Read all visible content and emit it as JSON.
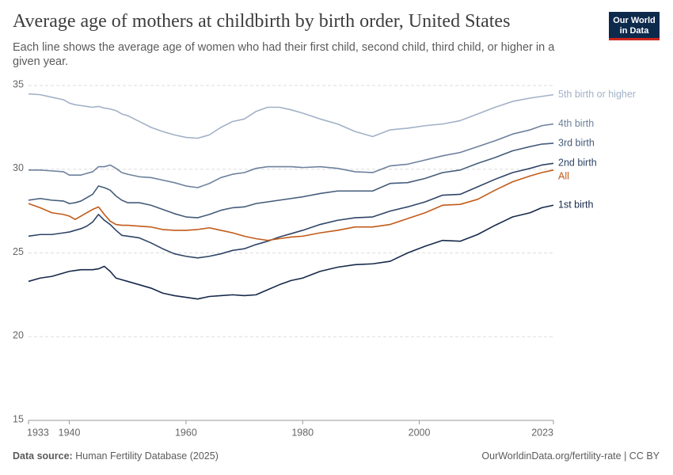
{
  "chart_data": {
    "type": "line",
    "title": "Average age of mothers at childbirth by birth order, United States",
    "subtitle": "Each line shows the average age of women who had their first child, second child, third child, or higher in a given year.",
    "logo": "Our World in Data",
    "source_label": "Data source:",
    "source": "Human Fertility Database (2025)",
    "credit": "OurWorldinData.org/fertility-rate | CC BY",
    "grid": true,
    "xlim": [
      1933,
      2023
    ],
    "xticks": [
      1933,
      1940,
      1960,
      1980,
      2000,
      2023
    ],
    "ylim": [
      15,
      35
    ],
    "yticks": [
      15,
      20,
      25,
      30,
      35
    ],
    "x": [
      1933,
      1935,
      1937,
      1939,
      1940,
      1941,
      1942,
      1943,
      1944,
      1945,
      1946,
      1947,
      1948,
      1949,
      1950,
      1952,
      1954,
      1956,
      1958,
      1960,
      1962,
      1964,
      1966,
      1968,
      1970,
      1972,
      1974,
      1976,
      1978,
      1980,
      1983,
      1986,
      1989,
      1992,
      1995,
      1998,
      2001,
      2004,
      2007,
      2010,
      2013,
      2016,
      2019,
      2021,
      2023
    ],
    "series": [
      {
        "name": "5th birth or higher",
        "color": "#a2b1c7",
        "values": [
          34.5,
          34.45,
          34.3,
          34.15,
          33.95,
          33.85,
          33.8,
          33.75,
          33.7,
          33.75,
          33.65,
          33.6,
          33.5,
          33.3,
          33.2,
          32.85,
          32.5,
          32.25,
          32.05,
          31.9,
          31.85,
          32.05,
          32.5,
          32.85,
          33.0,
          33.45,
          33.7,
          33.7,
          33.55,
          33.35,
          33.0,
          32.7,
          32.25,
          31.95,
          32.35,
          32.45,
          32.6,
          32.7,
          32.9,
          33.3,
          33.7,
          34.05,
          34.25,
          34.35,
          34.45
        ]
      },
      {
        "name": "4th birth",
        "color": "#6e819c",
        "values": [
          29.95,
          29.95,
          29.9,
          29.85,
          29.65,
          29.65,
          29.65,
          29.75,
          29.85,
          30.15,
          30.15,
          30.25,
          30.05,
          29.8,
          29.7,
          29.55,
          29.5,
          29.35,
          29.2,
          29.0,
          28.9,
          29.15,
          29.5,
          29.7,
          29.8,
          30.05,
          30.15,
          30.15,
          30.15,
          30.1,
          30.15,
          30.05,
          29.85,
          29.8,
          30.2,
          30.3,
          30.55,
          30.8,
          31.0,
          31.35,
          31.7,
          32.1,
          32.35,
          32.6,
          32.7
        ]
      },
      {
        "name": "3rd birth",
        "color": "#445c7a",
        "values": [
          28.15,
          28.25,
          28.15,
          28.1,
          27.95,
          28.0,
          28.1,
          28.3,
          28.5,
          29.0,
          28.9,
          28.75,
          28.4,
          28.15,
          28.0,
          28.0,
          27.85,
          27.6,
          27.35,
          27.15,
          27.1,
          27.3,
          27.55,
          27.7,
          27.75,
          27.95,
          28.05,
          28.15,
          28.25,
          28.35,
          28.55,
          28.7,
          28.7,
          28.7,
          29.15,
          29.2,
          29.45,
          29.8,
          29.95,
          30.35,
          30.7,
          31.1,
          31.35,
          31.5,
          31.55
        ]
      },
      {
        "name": "2nd birth",
        "color": "#2e4566",
        "values": [
          26.0,
          26.1,
          26.1,
          26.2,
          26.25,
          26.35,
          26.45,
          26.6,
          26.85,
          27.3,
          26.95,
          26.7,
          26.35,
          26.05,
          26.0,
          25.9,
          25.6,
          25.25,
          24.95,
          24.8,
          24.7,
          24.8,
          24.95,
          25.15,
          25.25,
          25.5,
          25.7,
          25.95,
          26.15,
          26.35,
          26.7,
          26.95,
          27.1,
          27.15,
          27.5,
          27.75,
          28.05,
          28.45,
          28.5,
          28.95,
          29.4,
          29.8,
          30.05,
          30.25,
          30.35
        ]
      },
      {
        "name": "All",
        "color": "#c15b19",
        "values": [
          27.95,
          27.7,
          27.4,
          27.3,
          27.2,
          27.0,
          27.2,
          27.4,
          27.6,
          27.75,
          27.3,
          26.9,
          26.7,
          26.65,
          26.65,
          26.6,
          26.55,
          26.4,
          26.35,
          26.35,
          26.4,
          26.5,
          26.35,
          26.2,
          26.0,
          25.85,
          25.75,
          25.85,
          25.95,
          26.0,
          26.2,
          26.35,
          26.55,
          26.55,
          26.7,
          27.05,
          27.4,
          27.85,
          27.9,
          28.2,
          28.75,
          29.25,
          29.6,
          29.8,
          29.95
        ]
      },
      {
        "name": "1st birth",
        "color": "#16294a",
        "values": [
          23.3,
          23.5,
          23.6,
          23.8,
          23.9,
          23.95,
          24.0,
          24.0,
          24.0,
          24.05,
          24.2,
          23.9,
          23.5,
          23.4,
          23.3,
          23.1,
          22.9,
          22.6,
          22.45,
          22.35,
          22.25,
          22.4,
          22.45,
          22.5,
          22.45,
          22.5,
          22.8,
          23.1,
          23.35,
          23.5,
          23.9,
          24.15,
          24.3,
          24.35,
          24.5,
          25.0,
          25.4,
          25.75,
          25.7,
          26.1,
          26.65,
          27.15,
          27.4,
          27.7,
          27.85
        ]
      }
    ]
  }
}
